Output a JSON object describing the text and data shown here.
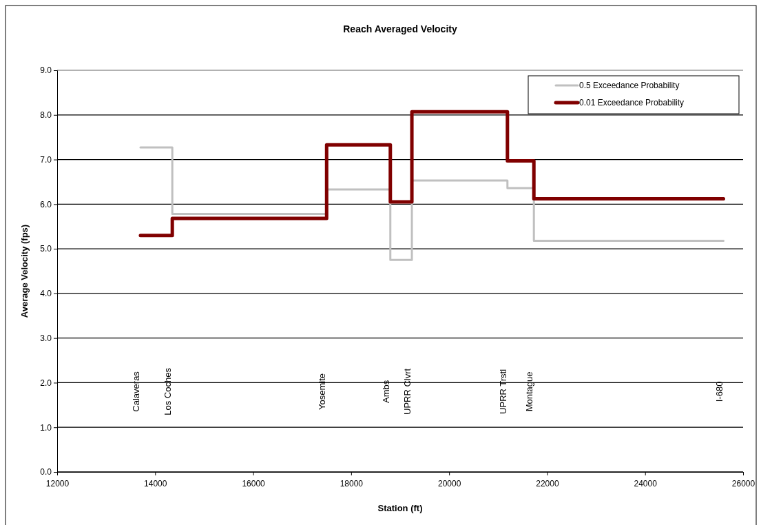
{
  "chart_data": {
    "type": "step",
    "title": "Reach Averaged Velocity",
    "xlabel": "Station (ft)",
    "ylabel": "Average Velocity (fps)",
    "xlim": [
      12000,
      26000
    ],
    "xticks": [
      12000,
      14000,
      16000,
      18000,
      20000,
      22000,
      24000,
      26000
    ],
    "ylim": [
      0,
      9
    ],
    "yticks": [
      {
        "value": 0,
        "label": "0.0"
      },
      {
        "value": 1,
        "label": "1.0"
      },
      {
        "value": 2,
        "label": "2.0"
      },
      {
        "value": 3,
        "label": "3.0"
      },
      {
        "value": 4,
        "label": "4.0"
      },
      {
        "value": 5,
        "label": "5.0"
      },
      {
        "value": 6,
        "label": "6.0"
      },
      {
        "value": 7,
        "label": "7.0"
      },
      {
        "value": 8,
        "label": "8.0"
      },
      {
        "value": 9,
        "label": "9.0"
      }
    ],
    "grid": "y",
    "legend": "top right",
    "line_style": "solid",
    "marker": "none",
    "x": [
      13700,
      14350,
      17500,
      18800,
      19240,
      21190,
      21730,
      25600
    ],
    "series": [
      {
        "name": "0.5 Exceedance Probability",
        "color": "#c0c0c0",
        "values": [
          7.27,
          5.78,
          6.33,
          4.75,
          6.53,
          6.36,
          5.18,
          5.18
        ]
      },
      {
        "name": "0.01 Exceedance Probability",
        "color": "#800000",
        "values": [
          5.3,
          5.68,
          7.33,
          6.05,
          8.07,
          6.97,
          6.12,
          6.12
        ]
      }
    ],
    "annotations": [
      "Calaveras",
      "Los Coches",
      "Yosemite",
      "Ambs",
      "UPRR Clvrt",
      "UPRR Trstl",
      "Montague",
      "I-680"
    ]
  }
}
